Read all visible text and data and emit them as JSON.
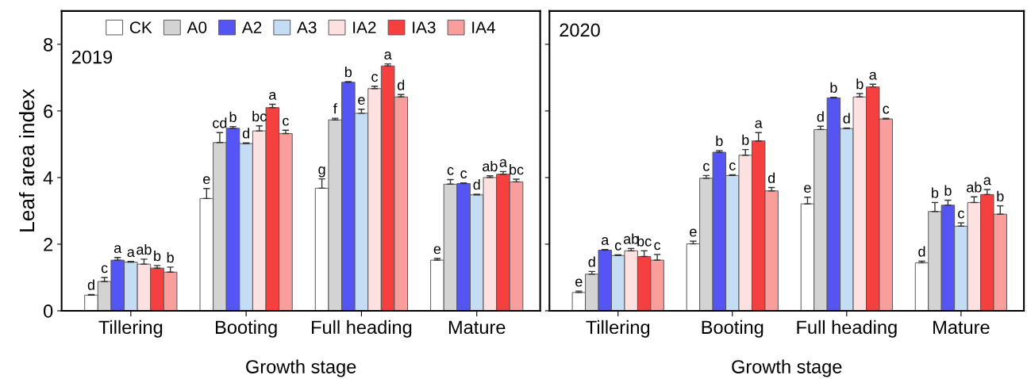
{
  "chart_data": [
    {
      "type": "bar",
      "xlabel": "Growth stage",
      "ylabel": "Leaf area index",
      "annotations": [
        "2019"
      ],
      "categories": [
        "Tillering",
        "Booting",
        "Full heading",
        "Mature"
      ],
      "ylim": [
        0,
        9
      ],
      "yticks": [
        0,
        2,
        4,
        6,
        8
      ],
      "grid": false,
      "legend": "top",
      "series": [
        {
          "name": "CK",
          "color": "#ffffff",
          "values": [
            0.47,
            3.37,
            3.68,
            1.52
          ],
          "errors": [
            0.02,
            0.3,
            0.28,
            0.05
          ],
          "value_labels": [
            "d",
            "e",
            "g",
            "e"
          ]
        },
        {
          "name": "A0",
          "color": "#d3d3d3",
          "values": [
            0.88,
            5.05,
            5.73,
            3.8
          ],
          "errors": [
            0.12,
            0.3,
            0.05,
            0.14
          ],
          "value_labels": [
            "c",
            "cd",
            "f",
            "c"
          ]
        },
        {
          "name": "A2",
          "color": "#5555f5",
          "values": [
            1.52,
            5.48,
            6.86,
            3.82
          ],
          "errors": [
            0.08,
            0.05,
            0.02,
            0.02
          ],
          "value_labels": [
            "a",
            "b",
            "b",
            "c"
          ]
        },
        {
          "name": "A3",
          "color": "#c5dcf5",
          "values": [
            1.46,
            5.02,
            5.93,
            3.48
          ],
          "errors": [
            0.02,
            0.02,
            0.12,
            0.02
          ],
          "value_labels": [
            "a",
            "d",
            "e",
            "d"
          ]
        },
        {
          "name": "IA2",
          "color": "#fde0e0",
          "values": [
            1.4,
            5.4,
            6.67,
            4.0
          ],
          "errors": [
            0.15,
            0.15,
            0.07,
            0.05
          ],
          "value_labels": [
            "ab",
            "bc",
            "c",
            "ab"
          ]
        },
        {
          "name": "IA3",
          "color": "#f54040",
          "values": [
            1.28,
            6.1,
            7.35,
            4.1
          ],
          "errors": [
            0.08,
            0.1,
            0.06,
            0.08
          ],
          "value_labels": [
            "b",
            "a",
            "a",
            "a"
          ]
        },
        {
          "name": "IA4",
          "color": "#fa9d9d",
          "values": [
            1.16,
            5.32,
            6.42,
            3.87
          ],
          "errors": [
            0.15,
            0.1,
            0.07,
            0.08
          ],
          "value_labels": [
            "b",
            "c",
            "d",
            "bc"
          ]
        }
      ]
    },
    {
      "type": "bar",
      "xlabel": "Growth stage",
      "annotations": [
        "2020"
      ],
      "categories": [
        "Tillering",
        "Booting",
        "Full heading",
        "Mature"
      ],
      "ylim": [
        0,
        9
      ],
      "yticks": [
        0,
        2,
        4,
        6,
        8
      ],
      "tick_labels": "x",
      "grid": false,
      "series": [
        {
          "color": "#ffffff",
          "values": [
            0.55,
            2.01,
            3.21,
            1.44
          ],
          "errors": [
            0.04,
            0.08,
            0.2,
            0.05
          ],
          "value_labels": [
            "e",
            "e",
            "e",
            "d"
          ]
        },
        {
          "color": "#d3d3d3",
          "values": [
            1.1,
            3.98,
            5.44,
            2.98
          ],
          "errors": [
            0.08,
            0.08,
            0.1,
            0.27
          ],
          "value_labels": [
            "d",
            "c",
            "d",
            "b"
          ]
        },
        {
          "color": "#5555f5",
          "values": [
            1.82,
            4.76,
            6.39,
            3.17
          ],
          "errors": [
            0.02,
            0.05,
            0.02,
            0.15
          ],
          "value_labels": [
            "a",
            "b",
            "b",
            "b"
          ]
        },
        {
          "color": "#c5dcf5",
          "values": [
            1.66,
            4.06,
            5.47,
            2.54
          ],
          "errors": [
            0.02,
            0.02,
            0.02,
            0.1
          ],
          "value_labels": [
            "c",
            "c",
            "d",
            "c"
          ]
        },
        {
          "color": "#fde0e0",
          "values": [
            1.8,
            4.67,
            6.42,
            3.25
          ],
          "errors": [
            0.07,
            0.17,
            0.1,
            0.17
          ],
          "value_labels": [
            "ab",
            "b",
            "b",
            "ab"
          ]
        },
        {
          "color": "#f54040",
          "values": [
            1.63,
            5.1,
            6.72,
            3.49
          ],
          "errors": [
            0.17,
            0.25,
            0.08,
            0.15
          ],
          "value_labels": [
            "bc",
            "a",
            "a",
            "a"
          ]
        },
        {
          "color": "#fa9d9d",
          "values": [
            1.52,
            3.6,
            5.76,
            2.9
          ],
          "errors": [
            0.17,
            0.1,
            0.02,
            0.25
          ],
          "value_labels": [
            "c",
            "d",
            "c",
            "b"
          ]
        }
      ]
    }
  ]
}
